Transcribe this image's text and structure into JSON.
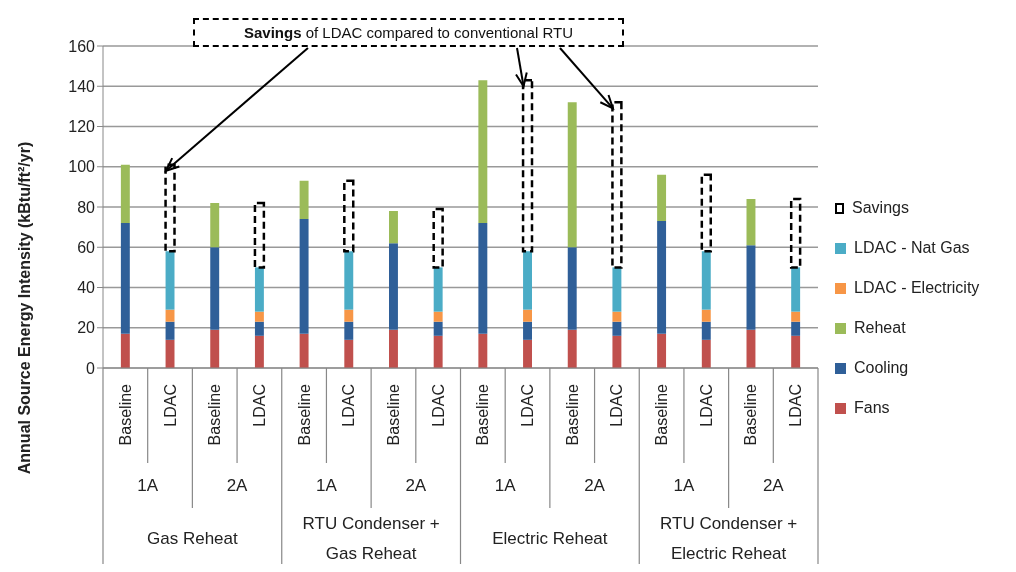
{
  "chart_data": {
    "type": "bar",
    "stacked": true,
    "ylabel": "Annual Source Energy Intensity (kBtu/ft²/yr)",
    "categories": [
      "Baseline",
      "LDAC",
      "Baseline",
      "LDAC",
      "Baseline",
      "LDAC",
      "Baseline",
      "LDAC",
      "Baseline",
      "LDAC",
      "Baseline",
      "LDAC",
      "Baseline",
      "LDAC",
      "Baseline",
      "LDAC"
    ],
    "series": [
      {
        "name": "Fans",
        "color": "#c0504d",
        "values": [
          17,
          14,
          19,
          16,
          17,
          14,
          19,
          16,
          17,
          14,
          19,
          16,
          17,
          14,
          19,
          16
        ]
      },
      {
        "name": "Cooling",
        "color": "#2f5f98",
        "values": [
          55,
          9,
          41,
          7,
          57,
          9,
          43,
          7,
          55,
          9,
          41,
          7,
          56,
          9,
          42,
          7
        ]
      },
      {
        "name": "Reheat",
        "color": "#9bbb59",
        "values": [
          29,
          null,
          22,
          null,
          19,
          null,
          16,
          null,
          71,
          null,
          72,
          null,
          23,
          null,
          23,
          null
        ]
      },
      {
        "name": "LDAC - Electricity",
        "color": "#f79646",
        "values": [
          null,
          6,
          null,
          5,
          null,
          6,
          null,
          5,
          null,
          6,
          null,
          5,
          null,
          6,
          null,
          5
        ]
      },
      {
        "name": "LDAC - Nat Gas",
        "color": "#4bacc6",
        "values": [
          null,
          29,
          null,
          22,
          null,
          29,
          null,
          22,
          null,
          29,
          null,
          22,
          null,
          29,
          null,
          22
        ]
      },
      {
        "name": "Savings",
        "color": "#000000",
        "line_style": "dashed",
        "values": [
          null,
          43,
          null,
          32,
          null,
          35,
          null,
          29,
          null,
          85,
          null,
          82,
          null,
          38,
          null,
          34
        ]
      }
    ],
    "ylim": [
      0,
      160
    ],
    "yticks": [
      0,
      20,
      40,
      60,
      80,
      100,
      120,
      140,
      160
    ],
    "grid": "y",
    "legend": "right",
    "annotations": [
      {
        "text": "Savings of LDAC compared to conventional RTU",
        "x": "LDAC",
        "y": 101
      },
      "1A",
      "2A",
      "1A",
      "2A",
      "1A",
      "2A",
      "1A",
      "2A",
      "Gas Reheat",
      "RTU Condenser + Gas Reheat",
      "Electric Reheat",
      "RTU Condenser + Electric Reheat"
    ]
  }
}
